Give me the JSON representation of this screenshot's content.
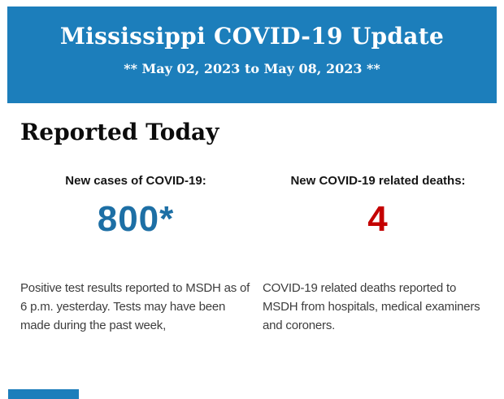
{
  "header": {
    "title": "Mississippi COVID-19 Update",
    "subtitle": "** May 02, 2023 to May 08, 2023 **",
    "background_color": "#1c7ebb",
    "text_color": "#ffffff"
  },
  "section": {
    "heading": "Reported Today"
  },
  "stats": {
    "cases": {
      "label": "New cases of COVID-19:",
      "value": "800*",
      "value_color": "#1d6fa5",
      "description": "Positive test results reported to MSDH as of 6 p.m. yesterday. Tests may have been made during the past week,"
    },
    "deaths": {
      "label": "New COVID-19 related deaths:",
      "value": "4",
      "value_color": "#c40000",
      "description": "COVID-19 related deaths reported to MSDH from hospitals, medical examiners and coroners."
    }
  },
  "footer": {
    "next_section_peek_color": "#1c7ebb"
  }
}
